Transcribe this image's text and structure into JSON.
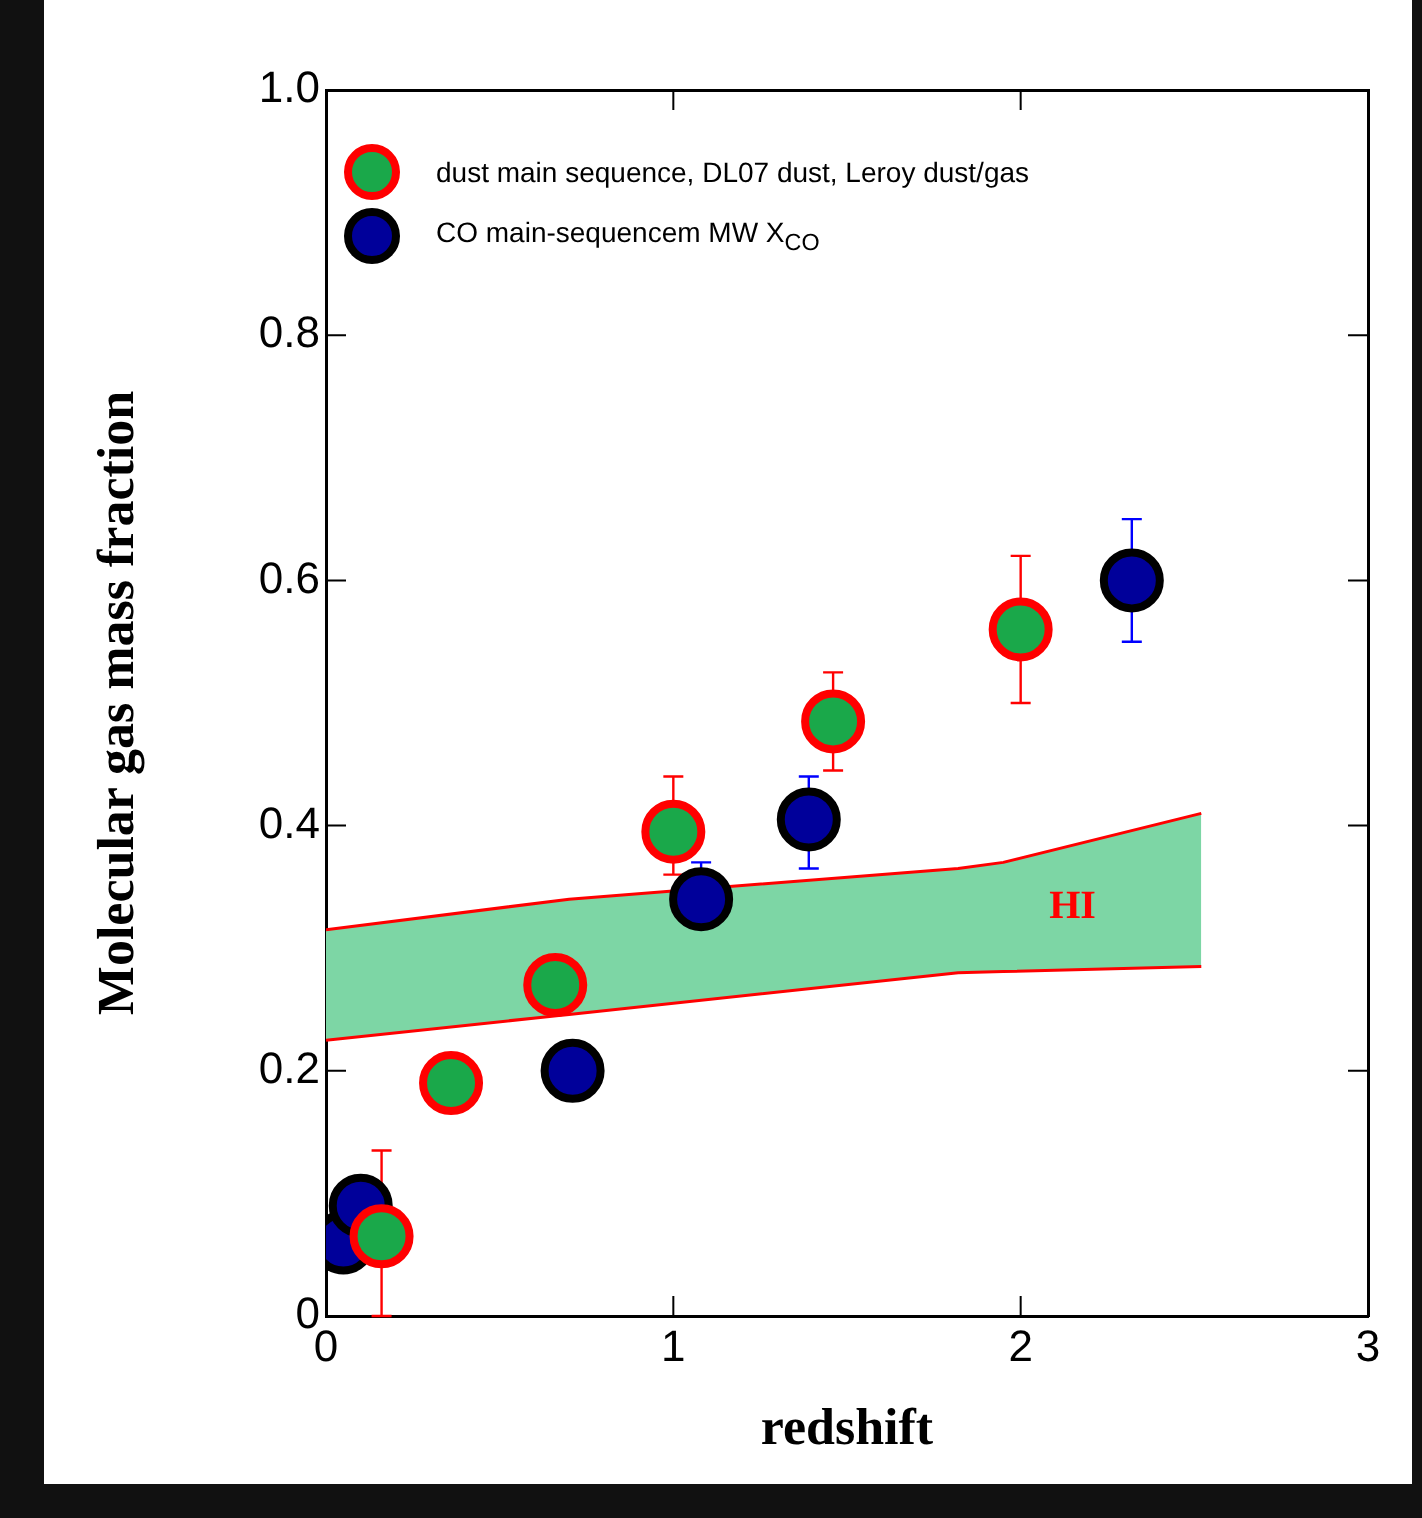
{
  "chart_data": {
    "type": "scatter",
    "xlabel": "redshift",
    "ylabel": "Molecular gas mass fraction",
    "xlim": [
      0,
      3
    ],
    "xticks": [
      0,
      1,
      2,
      3
    ],
    "ylim": [
      0,
      1
    ],
    "yticks": [
      0,
      0.2,
      0.4,
      0.6,
      0.8,
      {
        "value": 1,
        "label": "1.0"
      }
    ],
    "grid": false,
    "legend": "top left",
    "series": [
      {
        "type": "area",
        "name": "HI",
        "marker": "none",
        "color": "#7dd6a5",
        "x": [
          0,
          0.7,
          1.82,
          1.95,
          2.52
        ],
        "values": [
          0.315,
          0.34,
          0.365,
          0.37,
          0.41
        ]
      },
      {
        "type": "line",
        "marker": "none",
        "color": "#ff0000",
        "x": [
          0,
          0.7,
          1.82,
          1.95,
          2.52
        ],
        "values": [
          0.225,
          0.246,
          0.28,
          0.281,
          0.285
        ]
      },
      {
        "type": "line",
        "marker": "none",
        "color": "#ff0000",
        "x": [
          0,
          0.7,
          1.82,
          1.95,
          2.52
        ],
        "values": [
          0.315,
          0.34,
          0.365,
          0.37,
          0.41
        ]
      },
      {
        "type": "scatter",
        "name": "dust main sequence, DL07 dust, Leroy dust/gas",
        "marker": "circle",
        "color": "#1aa84a",
        "x": [
          0.16,
          0.36,
          0.66,
          1.0,
          1.46,
          2.0
        ],
        "values": [
          0.065,
          0.19,
          0.27,
          0.395,
          0.485,
          0.56
        ],
        "errors": [
          [
            0,
            0.135
          ],
          null,
          null,
          [
            0.36,
            0.44
          ],
          [
            0.445,
            0.525
          ],
          [
            0.5,
            0.62
          ]
        ]
      },
      {
        "name": "CO main-sequencem MW X$_{CO}$",
        "marker": "circle",
        "color": "#00009a",
        "x": [
          0.05,
          0.1,
          0.71,
          1.08,
          1.39,
          2.32
        ],
        "values": [
          0.06,
          0.09,
          0.2,
          0.34,
          0.405,
          0.6
        ],
        "errors": [
          null,
          null,
          null,
          [
            0.31,
            0.37
          ],
          [
            0.365,
            0.44
          ],
          [
            0.55,
            0.65
          ]
        ]
      }
    ]
  }
}
